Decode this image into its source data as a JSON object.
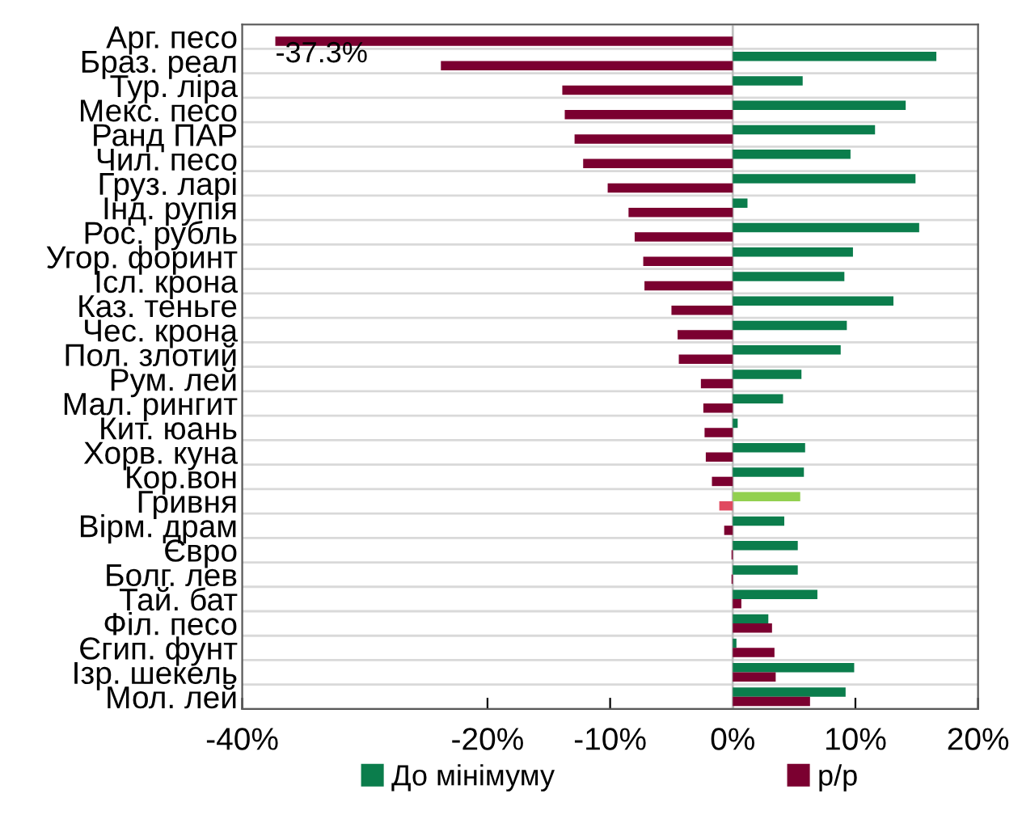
{
  "chart_data": {
    "type": "bar",
    "orientation": "horizontal",
    "categories": [
      "Арг. песо",
      "Браз. реал",
      "Тур. ліра",
      "Мекс. песо",
      "Ранд ПАР",
      "Чил. песо",
      "Груз. ларі",
      "Інд. рупія",
      "Рос. рубль",
      "Угор. форинт",
      "Ісл. крона",
      "Каз. теньге",
      "Чес. крона",
      "Пол. злотий",
      "Рум. лей",
      "Мал. рингит",
      "Кит. юань",
      "Хорв. куна",
      "Кор.вон",
      "Гривня",
      "Вірм. драм",
      "Євро",
      "Болг. лев",
      "Тай. бат",
      "Філ. песо",
      "Єгип. фунт",
      "Ізр. шекель",
      "Мол. лей"
    ],
    "series": [
      {
        "name": "До мінімуму",
        "color": "#0b7d4c",
        "colors": [
          "#0b7d4c",
          "#0b7d4c",
          "#0b7d4c",
          "#0b7d4c",
          "#0b7d4c",
          "#0b7d4c",
          "#0b7d4c",
          "#0b7d4c",
          "#0b7d4c",
          "#0b7d4c",
          "#0b7d4c",
          "#0b7d4c",
          "#0b7d4c",
          "#0b7d4c",
          "#0b7d4c",
          "#0b7d4c",
          "#0b7d4c",
          "#0b7d4c",
          "#0b7d4c",
          "#92d050",
          "#0b7d4c",
          "#0b7d4c",
          "#0b7d4c",
          "#0b7d4c",
          "#0b7d4c",
          "#0b7d4c",
          "#0b7d4c",
          "#0b7d4c"
        ],
        "values": [
          null,
          16.6,
          5.7,
          14.1,
          11.6,
          9.6,
          14.9,
          1.2,
          15.2,
          9.8,
          9.1,
          13.1,
          9.3,
          8.8,
          5.6,
          4.1,
          0.4,
          5.9,
          5.8,
          5.5,
          4.2,
          5.3,
          5.3,
          6.9,
          2.9,
          0.3,
          9.9,
          9.2
        ]
      },
      {
        "name": "р/р",
        "color": "#7b0030",
        "colors": [
          "#7b0030",
          "#7b0030",
          "#7b0030",
          "#7b0030",
          "#7b0030",
          "#7b0030",
          "#7b0030",
          "#7b0030",
          "#7b0030",
          "#7b0030",
          "#7b0030",
          "#7b0030",
          "#7b0030",
          "#7b0030",
          "#7b0030",
          "#7b0030",
          "#7b0030",
          "#7b0030",
          "#7b0030",
          "#e04a60",
          "#7b0030",
          "#7b0030",
          "#7b0030",
          "#7b0030",
          "#7b0030",
          "#7b0030",
          "#7b0030",
          "#7b0030"
        ],
        "values": [
          -37.3,
          -23.8,
          -13.9,
          -13.7,
          -12.9,
          -12.2,
          -10.2,
          -8.5,
          -8.0,
          -7.3,
          -7.2,
          -5.0,
          -4.5,
          -4.4,
          -2.6,
          -2.4,
          -2.3,
          -2.2,
          -1.7,
          -1.1,
          -0.7,
          -0.1,
          -0.1,
          0.7,
          3.2,
          3.4,
          3.5,
          6.3
        ],
        "value_labels": [
          "-37.3%",
          null,
          null,
          null,
          null,
          null,
          null,
          null,
          null,
          null,
          null,
          null,
          null,
          null,
          null,
          null,
          null,
          null,
          null,
          null,
          null,
          null,
          null,
          null,
          null,
          null,
          null,
          null
        ]
      }
    ],
    "xlim": [
      -40,
      20
    ],
    "xticks": [
      {
        "value": -40,
        "label": "-40%"
      },
      {
        "value": -20,
        "label": "-20%"
      },
      {
        "value": -10,
        "label": "-10%"
      },
      {
        "value": 0,
        "label": "0%"
      },
      {
        "value": 10,
        "label": "10%"
      },
      {
        "value": 20,
        "label": "20%"
      }
    ],
    "grid": "y",
    "legend": "bottom"
  }
}
